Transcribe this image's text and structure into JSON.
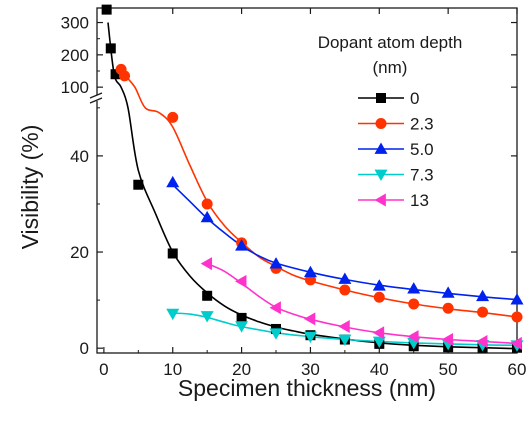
{
  "chart_data": {
    "type": "scatter",
    "xlabel": "Specimen thickness (nm)",
    "ylabel": "Visibility (%)",
    "legend_title_line1": "Dopant atom depth",
    "legend_title_line2": "(nm)",
    "legend_placement": "top-right",
    "grid": false,
    "xlim": [
      -1,
      60
    ],
    "ylim_lower": [
      -1,
      51
    ],
    "ylim_upper": [
      85,
      345
    ],
    "y_axis_break": true,
    "xticks": [
      "0",
      "10",
      "20",
      "30",
      "40",
      "50",
      "60"
    ],
    "yticks_lower": [
      "0",
      "20",
      "40"
    ],
    "yticks_upper": [
      "100",
      "200",
      "300"
    ],
    "series": [
      {
        "name": "0",
        "color": "#000000",
        "marker": "square",
        "x": [
          0.4,
          1.0,
          1.7,
          5,
          10,
          15,
          20,
          25,
          30,
          35,
          40,
          45,
          50,
          55,
          60
        ],
        "y": [
          340,
          220,
          140,
          34,
          19.7,
          10.9,
          6.3,
          4.0,
          2.7,
          1.8,
          0.9,
          0.4,
          0.2,
          0.1,
          0.1
        ],
        "fit": [
          [
            0.6,
            300
          ],
          [
            1.5,
            140
          ],
          [
            2.5,
            100
          ],
          [
            3.5,
            50
          ],
          [
            5,
            37
          ],
          [
            7.5,
            28
          ],
          [
            10,
            20
          ],
          [
            12.5,
            15
          ],
          [
            15,
            11.5
          ],
          [
            17.5,
            8.8
          ],
          [
            20,
            6.9
          ],
          [
            22.5,
            5.5
          ],
          [
            25,
            4.4
          ],
          [
            27.5,
            3.6
          ],
          [
            30,
            2.9
          ],
          [
            35,
            1.9
          ],
          [
            40,
            1.1
          ],
          [
            45,
            0.6
          ],
          [
            50,
            0.3
          ],
          [
            55,
            0.1
          ],
          [
            60,
            -0.1
          ]
        ]
      },
      {
        "name": "2.3",
        "color": "#ff3300",
        "marker": "circle",
        "x": [
          2.5,
          3,
          10,
          15,
          20,
          25,
          30,
          35,
          40,
          45,
          50,
          55,
          60
        ],
        "y": [
          155,
          135,
          48,
          30,
          21.9,
          16.6,
          14.2,
          12.1,
          10.6,
          9.2,
          8.3,
          7.5,
          6.5
        ],
        "fit": [
          [
            2.5,
            170
          ],
          [
            3,
            140
          ],
          [
            4.5,
            100
          ],
          [
            6,
            50
          ],
          [
            8,
            49
          ],
          [
            10,
            46
          ],
          [
            12.5,
            38
          ],
          [
            15,
            30.5
          ],
          [
            17.5,
            25.5
          ],
          [
            20,
            22
          ],
          [
            22.5,
            19
          ],
          [
            25,
            17
          ],
          [
            27.5,
            15.2
          ],
          [
            30,
            14
          ],
          [
            35,
            12.1
          ],
          [
            40,
            10.5
          ],
          [
            45,
            9.2
          ],
          [
            50,
            8.2
          ],
          [
            55,
            7.4
          ],
          [
            60,
            6.5
          ]
        ]
      },
      {
        "name": "5.0",
        "color": "#0022ee",
        "marker": "triangle-up",
        "x": [
          10,
          15,
          20,
          25,
          30,
          35,
          40,
          45,
          50,
          55,
          60
        ],
        "y": [
          34.5,
          27.2,
          21.3,
          17.6,
          15.8,
          14.4,
          13,
          12.4,
          11.5,
          10.8,
          10.1
        ],
        "fit": [
          [
            10,
            34
          ],
          [
            12.5,
            30.5
          ],
          [
            15,
            27
          ],
          [
            17.5,
            24
          ],
          [
            20,
            21.3
          ],
          [
            22.5,
            19.2
          ],
          [
            25,
            17.7
          ],
          [
            30,
            15.8
          ],
          [
            35,
            14.3
          ],
          [
            40,
            13.1
          ],
          [
            45,
            12.2
          ],
          [
            50,
            11.4
          ],
          [
            55,
            10.7
          ],
          [
            60,
            10.1
          ]
        ]
      },
      {
        "name": "7.3",
        "color": "#00cccc",
        "marker": "triangle-down",
        "x": [
          10,
          15,
          20,
          25,
          30,
          35,
          40,
          45,
          50,
          55,
          60
        ],
        "y": [
          7.2,
          6.7,
          4.6,
          3.1,
          2.4,
          1.8,
          1.4,
          1.1,
          0.9,
          0.7,
          0.6
        ],
        "fit": [
          [
            10,
            7.3
          ],
          [
            12.5,
            7.1
          ],
          [
            15,
            6.4
          ],
          [
            17.5,
            5.4
          ],
          [
            20,
            4.5
          ],
          [
            25,
            3.2
          ],
          [
            30,
            2.4
          ],
          [
            35,
            1.8
          ],
          [
            40,
            1.4
          ],
          [
            45,
            1.1
          ],
          [
            50,
            0.9
          ],
          [
            55,
            0.7
          ],
          [
            60,
            0.6
          ]
        ]
      },
      {
        "name": "13",
        "color": "#ff33cc",
        "marker": "triangle-left",
        "x": [
          15,
          20,
          25,
          30,
          35,
          40,
          45,
          50,
          55,
          60
        ],
        "y": [
          17.6,
          13.9,
          8.4,
          6.1,
          4.5,
          3.2,
          2.4,
          1.8,
          1.4,
          1.0
        ],
        "fit": [
          [
            15,
            17.6
          ],
          [
            17.5,
            16
          ],
          [
            20,
            13.5
          ],
          [
            22.5,
            10.8
          ],
          [
            25,
            8.5
          ],
          [
            27.5,
            7.1
          ],
          [
            30,
            6.0
          ],
          [
            35,
            4.4
          ],
          [
            40,
            3.2
          ],
          [
            45,
            2.4
          ],
          [
            50,
            1.8
          ],
          [
            55,
            1.4
          ],
          [
            60,
            1.0
          ]
        ]
      }
    ]
  }
}
